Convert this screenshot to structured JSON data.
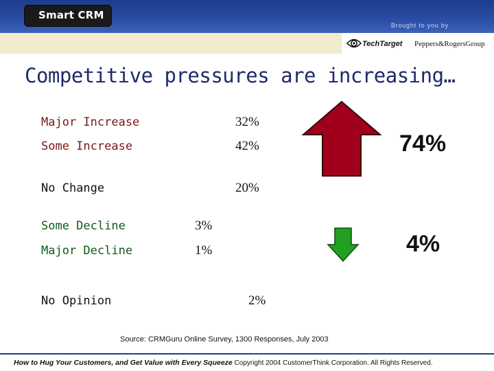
{
  "header": {
    "logo_text": "Smart CRM",
    "brought_by": "Brought to you by",
    "sponsors": [
      "TechTarget",
      "Peppers&RogersGroup"
    ]
  },
  "title": "Competitive pressures are increasing…",
  "rows": [
    {
      "label": "Major Increase",
      "value": "32%"
    },
    {
      "label": "Some Increase",
      "value": "42%"
    },
    {
      "label": "No Change",
      "value": "20%"
    },
    {
      "label": "Some Decline",
      "value": "3%"
    },
    {
      "label": "Major Decline",
      "value": "1%"
    },
    {
      "label": "No Opinion",
      "value": "2%"
    }
  ],
  "summary": {
    "increase_total": "74%",
    "decline_total": "4%"
  },
  "colors": {
    "increase_arrow": "#a0001c",
    "decline_arrow": "#22a022",
    "header_blue": "#2a4ea6",
    "title_navy": "#1f2a6a"
  },
  "icons": [
    "up-arrow-icon",
    "down-arrow-icon",
    "techtarget-eye-icon"
  ],
  "source": "Source: CRMGuru Online Survey, 1300 Responses, July 2003",
  "footer": {
    "tagline": "How to Hug Your Customers, and Get Value with Every Squeeze",
    "copyright": "Copyright 2004 CustomerThink Corporation. All Rights Reserved."
  }
}
